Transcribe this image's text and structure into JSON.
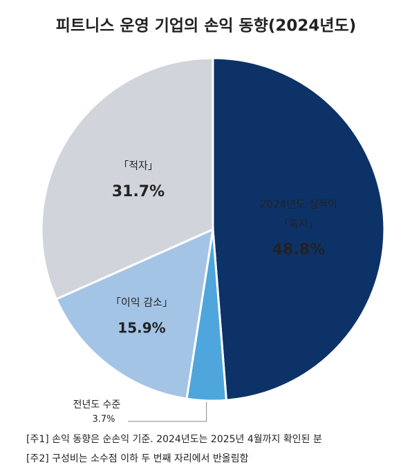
{
  "chart_data": {
    "type": "pie",
    "title": "피트니스 운영 기업의 손익 동향(2024년도)",
    "categories": [
      [
        "2024년도 실적이",
        "「흑자」"
      ],
      [
        "전년도 수준"
      ],
      [
        "「이익 감소」"
      ],
      [
        "「적자」"
      ]
    ],
    "values": [
      48.8,
      3.7,
      15.9,
      31.7
    ],
    "value_labels": [
      "48.8%",
      "3.7%",
      "15.9%",
      "31.7%"
    ],
    "colors": [
      "#0d3268",
      "#4fa6dc",
      "#a4c4e6",
      "#d1d5db"
    ],
    "notes": [
      "[주1] 손익 동향은 순손익 기준. 2024년도는 2025년 4월까지 확인된 분",
      "[주2] 구성비는 소수점 이하 두 번째 자리에서 반올림함"
    ]
  }
}
